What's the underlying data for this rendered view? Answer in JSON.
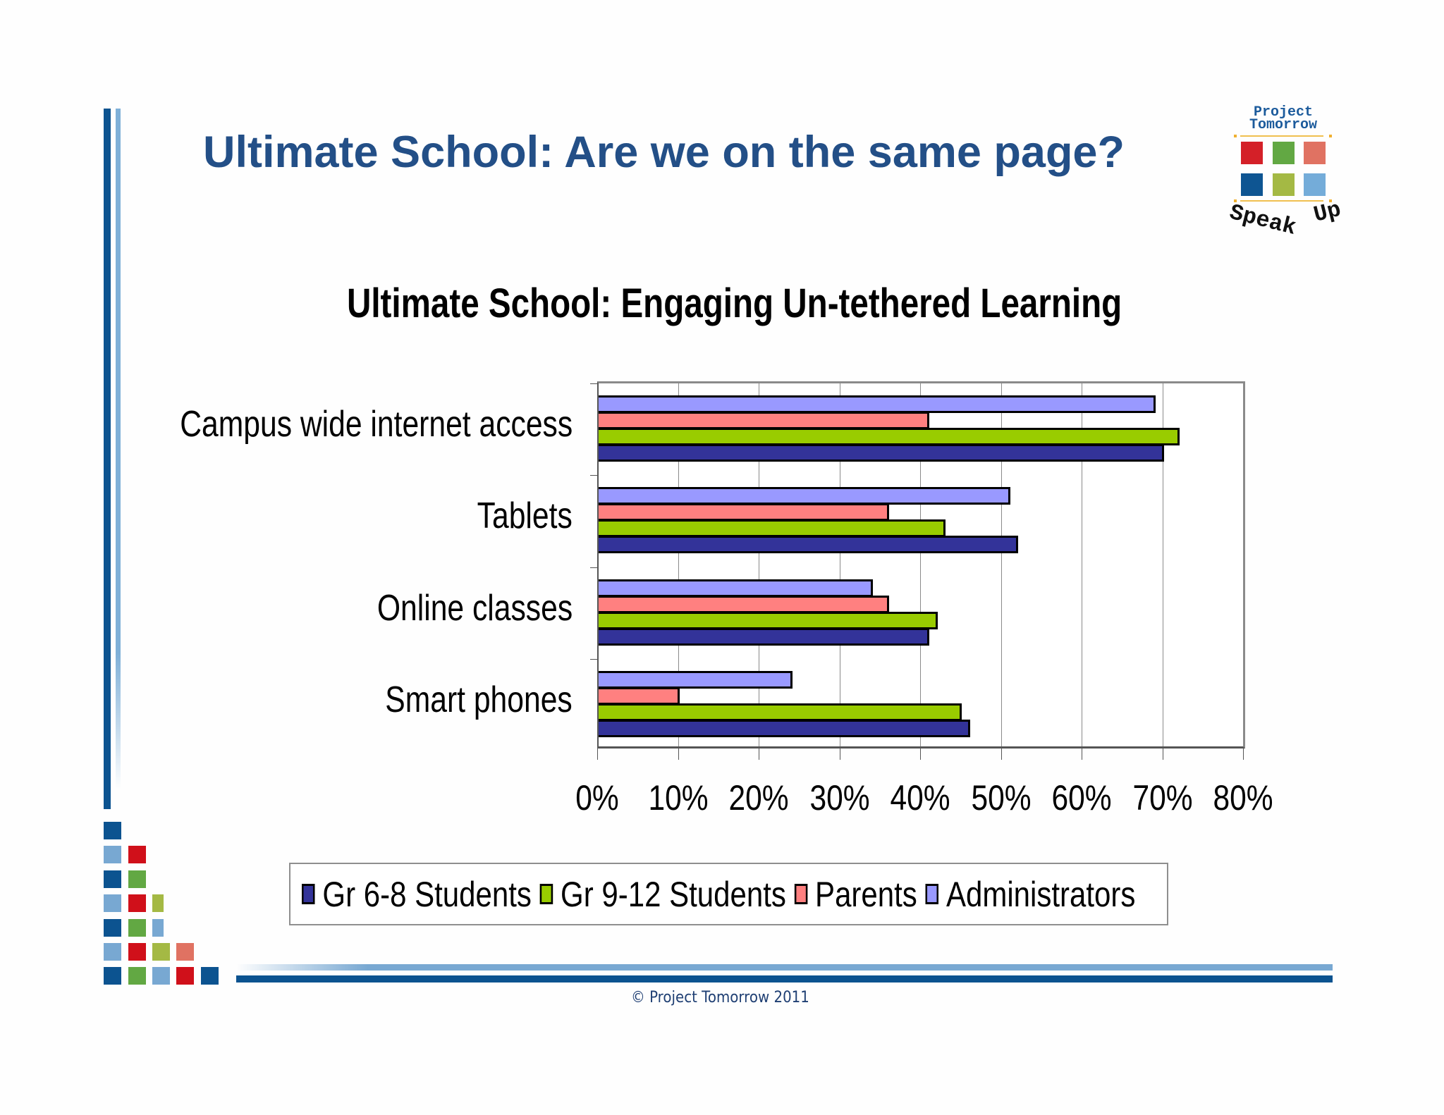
{
  "slide": {
    "title": "Ultimate School:  Are we on the same page?",
    "copyright": "© Project Tomorrow 2011"
  },
  "logo": {
    "line1": "Project",
    "line2": "Tomorrow",
    "tagline_word1": "Speak",
    "tagline_word2": "Up",
    "squares": [
      "#d42028",
      "#62a843",
      "#e07262",
      "#0e5592",
      "#a4b944",
      "#74acd9"
    ]
  },
  "colors": {
    "title": "#234f87",
    "gr68": "#333399",
    "gr912": "#99cc00",
    "parents": "#ff8080",
    "administrators": "#9999ff",
    "dark_blue": "#0c5390",
    "light_blue": "#78a8d2"
  },
  "chart_data": {
    "type": "bar",
    "orientation": "horizontal",
    "title": "Ultimate School:  Engaging Un-tethered Learning",
    "categories": [
      "Campus wide internet access",
      "Tablets",
      "Online classes",
      "Smart phones"
    ],
    "series": [
      {
        "name": "Gr 6-8 Students",
        "color": "#333399",
        "values": [
          70,
          52,
          41,
          46
        ]
      },
      {
        "name": "Gr 9-12 Students",
        "color": "#99cc00",
        "values": [
          72,
          43,
          42,
          45
        ]
      },
      {
        "name": "Parents",
        "color": "#ff8080",
        "values": [
          41,
          36,
          36,
          10
        ]
      },
      {
        "name": "Administrators",
        "color": "#9999ff",
        "values": [
          69,
          51,
          34,
          24
        ]
      }
    ],
    "xlabel": "",
    "ylabel": "",
    "xlim": [
      0,
      80
    ],
    "x_ticks": [
      "0%",
      "10%",
      "20%",
      "30%",
      "40%",
      "50%",
      "60%",
      "70%",
      "80%"
    ],
    "grid": "vertical",
    "legend_position": "bottom",
    "unit": "%"
  },
  "legend": {
    "items": [
      {
        "label": "Gr 6-8 Students",
        "color": "#333399"
      },
      {
        "label": "Gr 9-12 Students",
        "color": "#99cc00"
      },
      {
        "label": "Parents",
        "color": "#ff8080"
      },
      {
        "label": "Administrators",
        "color": "#9999ff"
      }
    ]
  },
  "decor": {
    "corner_grid": [
      [
        "#0c5390"
      ],
      [
        "#78a8d2",
        "#d0101a"
      ],
      [
        "#0c5390",
        "#62a843"
      ],
      [
        "#78a8d2",
        "#d0101a",
        "#a4b944"
      ],
      [
        "#0c5390",
        "#62a843",
        "#78a8d2"
      ],
      [
        "#78a8d2",
        "#d0101a",
        "#a4b944",
        "#e07262"
      ],
      [
        "#0c5390",
        "#62a843",
        "#78a8d2",
        "#d0101a",
        "#0c5390"
      ]
    ]
  }
}
